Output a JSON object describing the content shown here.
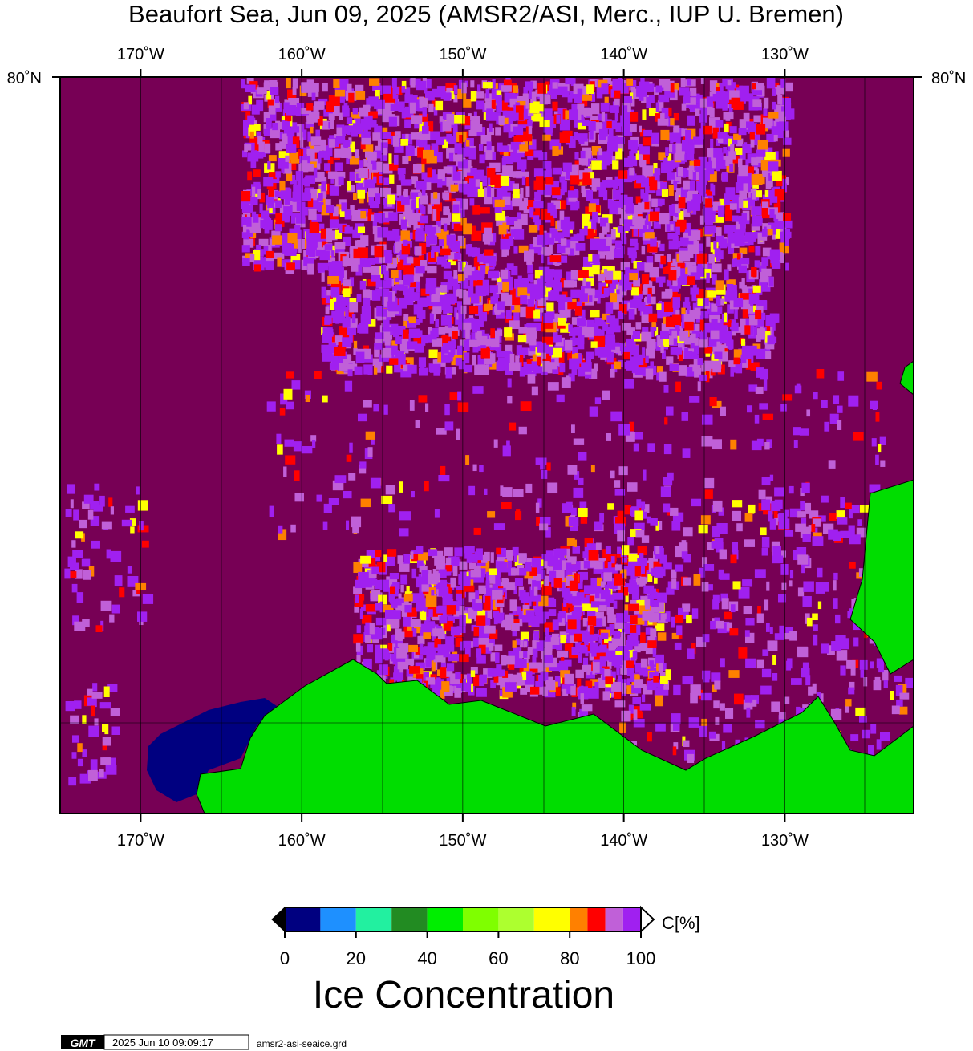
{
  "map": {
    "title": "Beaufort Sea, Jun 09, 2025 (AMSR2/ASI, Merc., IUP U. Bremen)",
    "xlim": [
      -175,
      -122
    ],
    "lon_ticks": [
      {
        "value": -170,
        "label": "170˚W"
      },
      {
        "value": -160,
        "label": "160˚W"
      },
      {
        "value": -150,
        "label": "150˚W"
      },
      {
        "value": -140,
        "label": "140˚W"
      },
      {
        "value": -130,
        "label": "130˚W"
      }
    ],
    "lat_label": "80˚N"
  },
  "colorbar": {
    "title": "Ice Concentration",
    "unit_label": "C[%]",
    "range": [
      0,
      100
    ],
    "ticks": [
      0,
      20,
      40,
      60,
      80,
      100
    ],
    "bins": [
      0,
      10,
      20,
      30,
      40,
      50,
      60,
      70,
      80,
      85,
      90,
      95,
      100
    ],
    "colors": [
      "#000080",
      "#1e90ff",
      "#22f0a0",
      "#228b22",
      "#00ee00",
      "#7fff00",
      "#adff2f",
      "#ffff00",
      "#ff8000",
      "#ff0000",
      "#c060d8",
      "#a020f0"
    ]
  },
  "footer": {
    "logo": "GMT",
    "timestamp": "2025 Jun 10 09:09:17",
    "file": "amsr2-asi-seaice.grd"
  }
}
